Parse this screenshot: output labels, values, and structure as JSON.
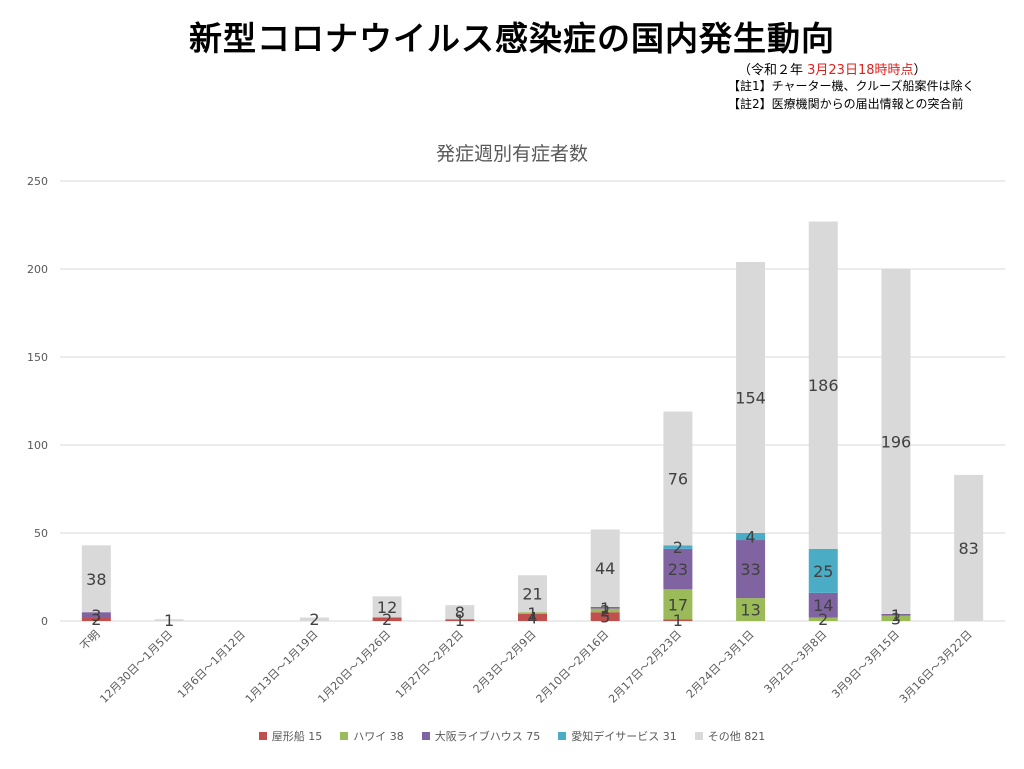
{
  "header": {
    "title": "新型コロナウイルス感染症の国内発生動向",
    "date_prefix": "（令和２年 ",
    "date_highlight": "3月23日18時時点",
    "date_suffix": "）",
    "note1": "【註1】チャーター機、クルーズ船案件は除く",
    "note2": "【註2】医療機関からの届出情報との突合前"
  },
  "colors": {
    "yakatabune": "#c0504d",
    "hawaii": "#9bbb59",
    "osaka_livehouse": "#8064a2",
    "aichi_dayservice": "#4bacc6",
    "other": "#d9d9d9",
    "axis_text": "#595959",
    "grid": "#d9d9d9"
  },
  "chart_data": {
    "type": "bar",
    "stacked": true,
    "title": "発症週別有症者数",
    "ylim": [
      0,
      250
    ],
    "yticks": [
      0,
      50,
      100,
      150,
      200,
      250
    ],
    "grid": true,
    "legend_position": "bottom",
    "categories": [
      "不明",
      "12月30日～1月5日",
      "1月6日～1月12日",
      "1月13日～1月19日",
      "1月20日～1月26日",
      "1月27日～2月2日",
      "2月3日～2月9日",
      "2月10日～2月16日",
      "2月17日～2月23日",
      "2月24日～3月1日",
      "3月2日～3月8日",
      "3月9日～3月15日",
      "3月16日～3月22日"
    ],
    "series": [
      {
        "name": "屋形船 15",
        "color_key": "yakatabune",
        "values": [
          2,
          0,
          0,
          0,
          2,
          1,
          4,
          5,
          1,
          0,
          0,
          0,
          0
        ]
      },
      {
        "name": "ハワイ 38",
        "color_key": "hawaii",
        "values": [
          0,
          0,
          0,
          0,
          0,
          0,
          1,
          2,
          17,
          13,
          2,
          3,
          0
        ]
      },
      {
        "name": "大阪ライブハウス 75",
        "color_key": "osaka_livehouse",
        "values": [
          3,
          0,
          0,
          0,
          0,
          0,
          0,
          1,
          23,
          33,
          14,
          1,
          0
        ]
      },
      {
        "name": "愛知デイサービス 31",
        "color_key": "aichi_dayservice",
        "values": [
          0,
          0,
          0,
          0,
          0,
          0,
          0,
          0,
          2,
          4,
          25,
          0,
          0
        ]
      },
      {
        "name": "その他 821",
        "color_key": "other",
        "values": [
          38,
          1,
          0,
          2,
          12,
          8,
          21,
          44,
          76,
          154,
          186,
          196,
          83
        ]
      }
    ],
    "data_labels": [
      {
        "category": 0,
        "series": 0,
        "text": "2"
      },
      {
        "category": 0,
        "series": 2,
        "text": "3"
      },
      {
        "category": 0,
        "series": 4,
        "text": "38"
      },
      {
        "category": 1,
        "series": 4,
        "text": "1"
      },
      {
        "category": 3,
        "series": 4,
        "text": "2"
      },
      {
        "category": 4,
        "series": 0,
        "text": "2"
      },
      {
        "category": 4,
        "series": 4,
        "text": "12"
      },
      {
        "category": 5,
        "series": 0,
        "text": "1"
      },
      {
        "category": 5,
        "series": 4,
        "text": "8"
      },
      {
        "category": 6,
        "series": 0,
        "text": "4"
      },
      {
        "category": 6,
        "series": 1,
        "text": "1"
      },
      {
        "category": 6,
        "series": 4,
        "text": "21"
      },
      {
        "category": 7,
        "series": 0,
        "text": "5"
      },
      {
        "category": 7,
        "series": 1,
        "text": "2"
      },
      {
        "category": 7,
        "series": 2,
        "text": "1"
      },
      {
        "category": 7,
        "series": 4,
        "text": "44"
      },
      {
        "category": 8,
        "series": 0,
        "text": "1"
      },
      {
        "category": 8,
        "series": 1,
        "text": "17"
      },
      {
        "category": 8,
        "series": 2,
        "text": "23"
      },
      {
        "category": 8,
        "series": 3,
        "text": "2"
      },
      {
        "category": 8,
        "series": 4,
        "text": "76"
      },
      {
        "category": 9,
        "series": 1,
        "text": "13"
      },
      {
        "category": 9,
        "series": 2,
        "text": "33"
      },
      {
        "category": 9,
        "series": 3,
        "text": "4"
      },
      {
        "category": 9,
        "series": 4,
        "text": "154"
      },
      {
        "category": 10,
        "series": 1,
        "text": "2"
      },
      {
        "category": 10,
        "series": 2,
        "text": "14"
      },
      {
        "category": 10,
        "series": 3,
        "text": "25"
      },
      {
        "category": 10,
        "series": 4,
        "text": "186"
      },
      {
        "category": 11,
        "series": 1,
        "text": "3"
      },
      {
        "category": 11,
        "series": 2,
        "text": "1"
      },
      {
        "category": 11,
        "series": 4,
        "text": "196"
      },
      {
        "category": 12,
        "series": 4,
        "text": "83"
      }
    ]
  }
}
